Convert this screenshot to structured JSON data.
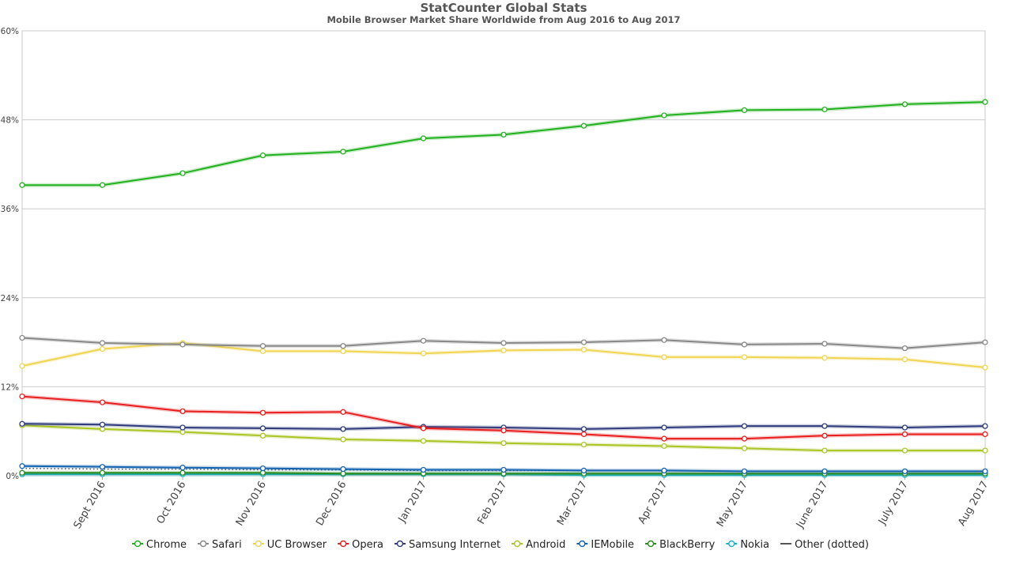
{
  "chart_data": {
    "type": "line",
    "title": "StatCounter Global Stats",
    "subtitle": "Mobile Browser Market Share Worldwide from Aug 2016 to Aug 2017",
    "xlabel": "",
    "ylabel": "",
    "ylim": [
      0,
      60
    ],
    "y_ticks": [
      "0%",
      "12%",
      "24%",
      "36%",
      "48%",
      "60%"
    ],
    "y_tick_values": [
      0,
      12,
      24,
      36,
      48,
      60
    ],
    "x_tick_labels": [
      "Sept 2016",
      "Oct 2016",
      "Nov 2016",
      "Dec 2016",
      "Jan 2017",
      "Feb 2017",
      "Mar 2017",
      "Apr 2017",
      "May 2017",
      "June 2017",
      "July 2017",
      "Aug 2017"
    ],
    "categories": [
      "Aug 2016",
      "Sept 2016",
      "Oct 2016",
      "Nov 2016",
      "Dec 2016",
      "Jan 2017",
      "Feb 2017",
      "Mar 2017",
      "Apr 2017",
      "May 2017",
      "June 2017",
      "July 2017",
      "Aug 2017"
    ],
    "grid": true,
    "legend_position": "bottom",
    "series": [
      {
        "name": "Chrome",
        "color": "#22b11e",
        "values": [
          39.2,
          39.2,
          40.8,
          43.2,
          43.7,
          45.5,
          46.0,
          47.2,
          48.6,
          49.3,
          49.4,
          50.1,
          50.4
        ]
      },
      {
        "name": "Safari",
        "color": "#888888",
        "values": [
          18.6,
          17.9,
          17.7,
          17.5,
          17.5,
          18.2,
          17.9,
          18.0,
          18.3,
          17.7,
          17.8,
          17.2,
          18.0
        ]
      },
      {
        "name": "UC Browser",
        "color": "#f0d552",
        "values": [
          14.8,
          17.1,
          17.9,
          16.8,
          16.8,
          16.5,
          16.9,
          17.0,
          16.0,
          16.0,
          15.9,
          15.7,
          14.6
        ]
      },
      {
        "name": "Opera",
        "color": "#e81e1e",
        "values": [
          10.7,
          9.9,
          8.7,
          8.5,
          8.6,
          6.4,
          6.1,
          5.6,
          5.0,
          5.0,
          5.4,
          5.6,
          5.6
        ]
      },
      {
        "name": "Samsung Internet",
        "color": "#2e3b7a",
        "values": [
          7.0,
          6.9,
          6.5,
          6.4,
          6.3,
          6.6,
          6.5,
          6.3,
          6.5,
          6.7,
          6.7,
          6.5,
          6.7
        ]
      },
      {
        "name": "Android",
        "color": "#a9c523",
        "values": [
          6.8,
          6.3,
          5.9,
          5.4,
          4.9,
          4.7,
          4.4,
          4.2,
          4.0,
          3.7,
          3.4,
          3.4,
          3.4
        ]
      },
      {
        "name": "IEMobile",
        "color": "#1463b0",
        "values": [
          1.3,
          1.2,
          1.1,
          1.0,
          0.9,
          0.8,
          0.8,
          0.7,
          0.7,
          0.6,
          0.6,
          0.6,
          0.6
        ]
      },
      {
        "name": "BlackBerry",
        "color": "#2a8a1e",
        "values": [
          0.4,
          0.4,
          0.4,
          0.4,
          0.3,
          0.3,
          0.3,
          0.3,
          0.3,
          0.3,
          0.3,
          0.3,
          0.3
        ]
      },
      {
        "name": "Nokia",
        "color": "#1ab0c8",
        "values": [
          0.2,
          0.2,
          0.2,
          0.2,
          0.2,
          0.2,
          0.2,
          0.1,
          0.1,
          0.1,
          0.1,
          0.1,
          0.1
        ]
      },
      {
        "name": "Other (dotted)",
        "color": "#555555",
        "dotted": true,
        "values": [
          1.0,
          0.9,
          0.9,
          0.8,
          0.8,
          0.7,
          0.7,
          0.7,
          0.7,
          0.6,
          0.6,
          0.6,
          0.6
        ]
      }
    ]
  }
}
